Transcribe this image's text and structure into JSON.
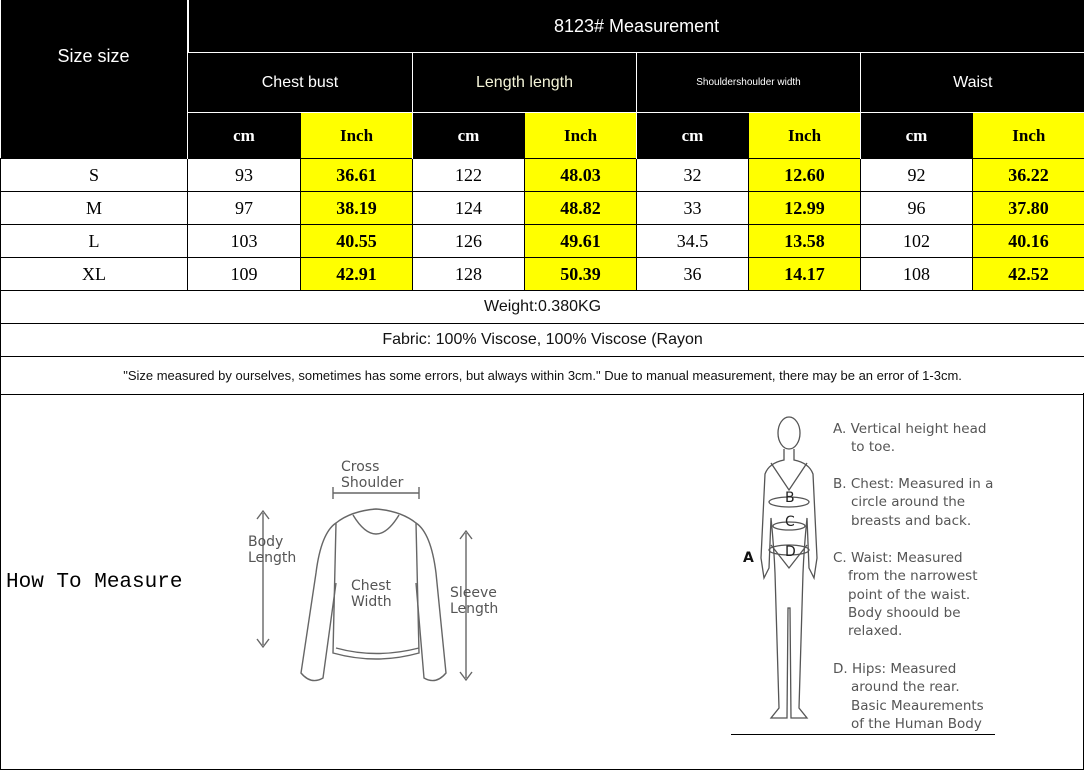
{
  "header": {
    "title": "8123# Measurement",
    "size_label": "Size size",
    "groups": [
      "Chest bust",
      "Length length",
      "Shouldershoulder width",
      "Waist"
    ],
    "unit_cm": "cm",
    "unit_inch": "Inch"
  },
  "rows": [
    {
      "size": "S",
      "values": [
        "93",
        "36.61",
        "122",
        "48.03",
        "32",
        "12.60",
        "92",
        "36.22"
      ]
    },
    {
      "size": "M",
      "values": [
        "97",
        "38.19",
        "124",
        "48.82",
        "33",
        "12.99",
        "96",
        "37.80"
      ]
    },
    {
      "size": "L",
      "values": [
        "103",
        "40.55",
        "126",
        "49.61",
        "34.5",
        "13.58",
        "102",
        "40.16"
      ]
    },
    {
      "size": "XL",
      "values": [
        "109",
        "42.91",
        "128",
        "50.39",
        "36",
        "14.17",
        "108",
        "42.52"
      ]
    }
  ],
  "weight": "Weight:0.380KG",
  "fabric": "Fabric: 100% Viscose, 100% Viscose (Rayon",
  "note": "\"Size measured by ourselves, sometimes has some errors, but always within 3cm.\" Due to manual measurement, there may be an error of 1-3cm.",
  "how_to": {
    "title": "How To Measure",
    "sweater_labels": {
      "cross_shoulder": [
        "Cross",
        "Shoulder"
      ],
      "body_length": [
        "Body",
        "Length"
      ],
      "chest_width": [
        "Chest",
        "Width"
      ],
      "sleeve_length": [
        "Sleeve",
        "Length"
      ]
    },
    "body_marks": [
      "A",
      "B",
      "C",
      "D"
    ],
    "descriptions": {
      "a": [
        "A. Vertical height head",
        "to toe."
      ],
      "b": [
        "B. Chest: Measured in a",
        "circle around the",
        "breasts and back."
      ],
      "c": [
        "C. Waist: Measured",
        "from the narrowest",
        "point of the waist.",
        "Body shoould be",
        "relaxed."
      ],
      "d": [
        "D. Hips: Measured",
        "around the rear.",
        "Basic Meaurements",
        "of the Human Body"
      ]
    }
  },
  "colors": {
    "header_bg": "#000000",
    "inch_highlight": "#ffff00"
  }
}
